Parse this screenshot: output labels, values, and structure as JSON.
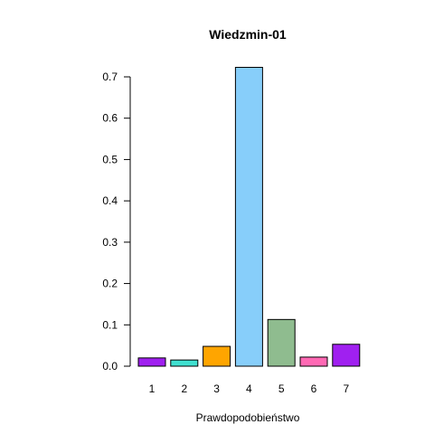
{
  "chart_data": {
    "type": "bar",
    "title": "Wiedzmin-01",
    "xlabel": "Prawdopodobieństwo",
    "ylabel": "",
    "categories": [
      "1",
      "2",
      "3",
      "4",
      "5",
      "6",
      "7"
    ],
    "values": [
      0.02,
      0.015,
      0.048,
      0.723,
      0.113,
      0.022,
      0.053
    ],
    "colors": [
      "#a020f0",
      "#40e0d0",
      "#ffa500",
      "#87cefa",
      "#8fbc8f",
      "#ff69b4",
      "#a020f0"
    ],
    "ylim": [
      0,
      0.7
    ],
    "yticks": [
      "0.0",
      "0.1",
      "0.2",
      "0.3",
      "0.4",
      "0.5",
      "0.6",
      "0.7"
    ],
    "grid": false,
    "legend": "none"
  }
}
